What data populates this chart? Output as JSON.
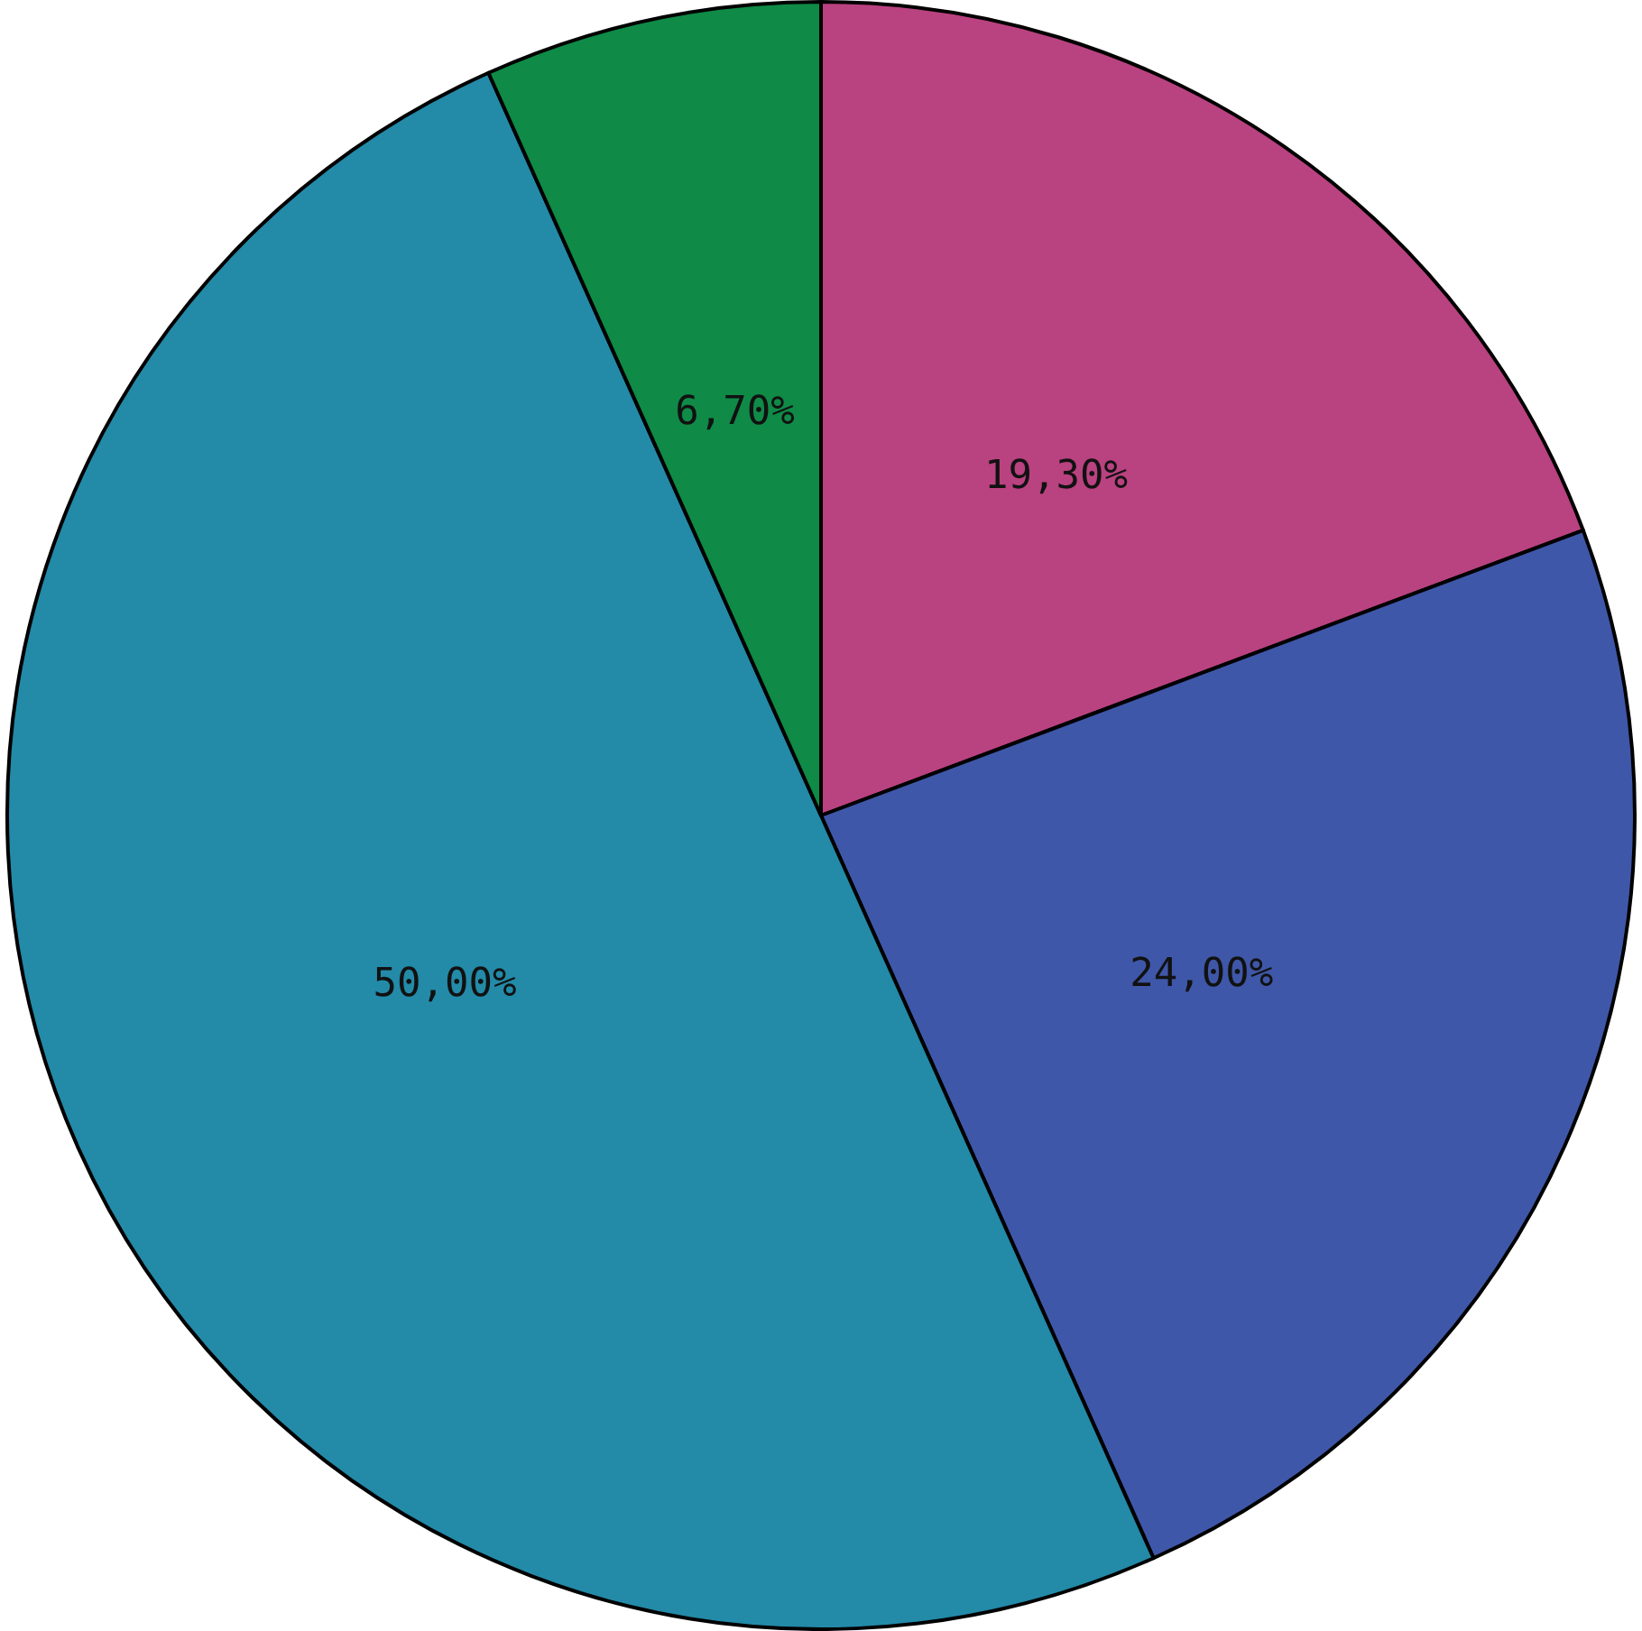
{
  "chart_data": {
    "type": "pie",
    "categories": [
      null,
      null,
      null,
      null
    ],
    "values": [
      19.3,
      24.0,
      50.0,
      6.7
    ],
    "colors": [
      "#b94280",
      "#3f57a8",
      "#238aa8",
      "#0f8a47"
    ],
    "value_labels": [
      "19,30%",
      "24,00%",
      "50,00%",
      "6,70%"
    ]
  }
}
